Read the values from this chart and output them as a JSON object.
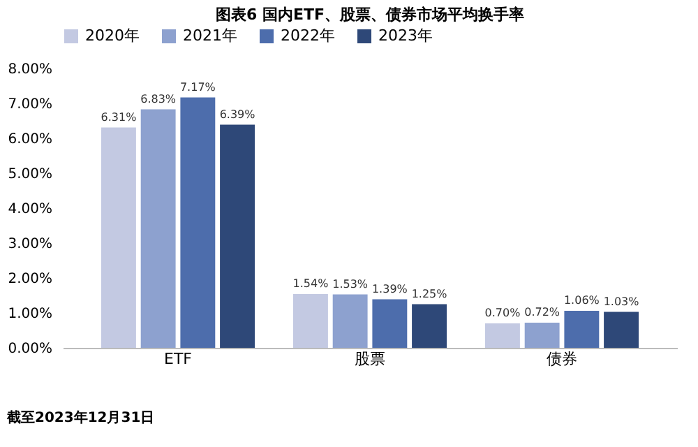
{
  "chart_data": {
    "type": "bar",
    "title": "图表6 国内ETF、股票、债券市场平均换手率",
    "categories": [
      "ETF",
      "股票",
      "债券"
    ],
    "series": [
      {
        "name": "2020年",
        "color": "#c3c9e2",
        "values": [
          6.31,
          1.54,
          0.7
        ],
        "value_labels": [
          "6.31%",
          "1.54%",
          "0.70%"
        ]
      },
      {
        "name": "2021年",
        "color": "#8da1cf",
        "values": [
          6.83,
          1.53,
          0.72
        ],
        "value_labels": [
          "6.83%",
          "1.53%",
          "0.72%"
        ]
      },
      {
        "name": "2022年",
        "color": "#4d6dac",
        "values": [
          7.17,
          1.39,
          1.06
        ],
        "value_labels": [
          "7.17%",
          "1.39%",
          "1.06%"
        ]
      },
      {
        "name": "2023年",
        "color": "#2e4878",
        "values": [
          6.39,
          1.25,
          1.03
        ],
        "value_labels": [
          "6.39%",
          "1.25%",
          "1.03%"
        ]
      }
    ],
    "ylim": [
      0,
      8
    ],
    "yticks": [
      {
        "value": 0,
        "label": "0.00%"
      },
      {
        "value": 1,
        "label": "1.00%"
      },
      {
        "value": 2,
        "label": "2.00%"
      },
      {
        "value": 3,
        "label": "3.00%"
      },
      {
        "value": 4,
        "label": "4.00%"
      },
      {
        "value": 5,
        "label": "5.00%"
      },
      {
        "value": 6,
        "label": "6.00%"
      },
      {
        "value": 7,
        "label": "7.00%"
      },
      {
        "value": 8,
        "label": "8.00%"
      }
    ],
    "grid": false,
    "legend": "top",
    "annotations": [
      "截至2023年12月31日"
    ]
  }
}
